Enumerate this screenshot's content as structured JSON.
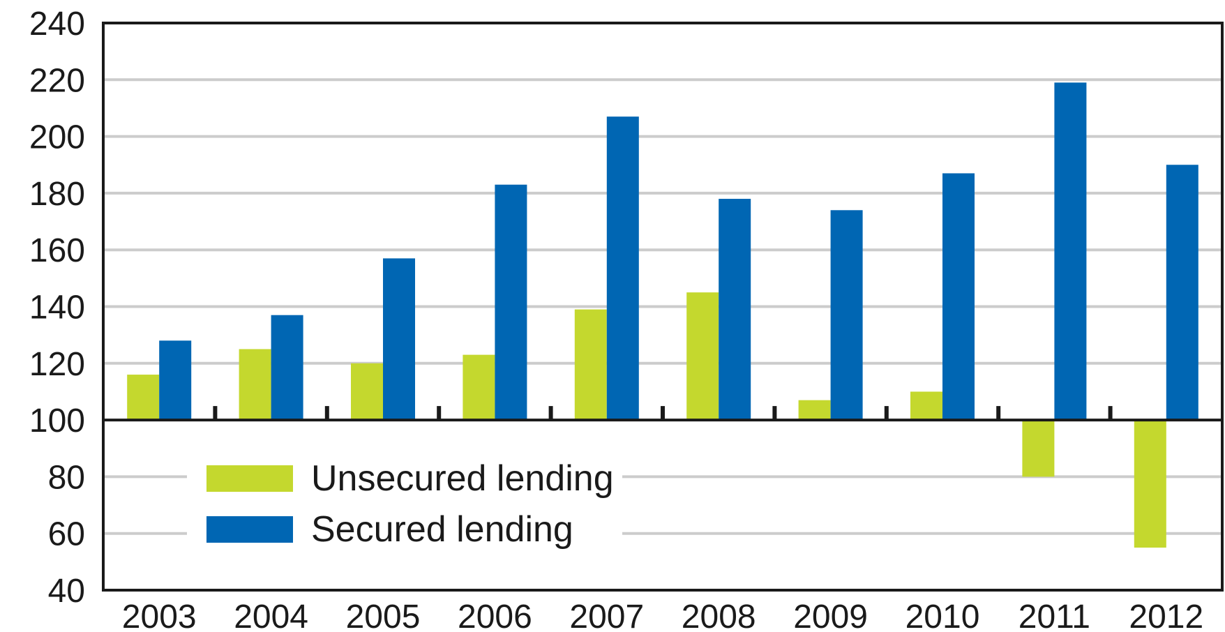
{
  "colors": {
    "unsecured": "#c4d82e",
    "secured": "#0066b3",
    "grid": "#cccccc",
    "axis": "#1a1a1a",
    "background": "#ffffff"
  },
  "legend": {
    "placement": "lower-left",
    "items": [
      {
        "label": "Unsecured lending",
        "color": "#c4d82e"
      },
      {
        "label": "Secured lending",
        "color": "#0066b3"
      }
    ]
  },
  "chart_data": {
    "type": "bar",
    "categories": [
      "2003",
      "2004",
      "2005",
      "2006",
      "2007",
      "2008",
      "2009",
      "2010",
      "2011",
      "2012"
    ],
    "series": [
      {
        "name": "Unsecured lending",
        "values": [
          116,
          125,
          120,
          123,
          139,
          145,
          107,
          110,
          80,
          55
        ]
      },
      {
        "name": "Secured lending",
        "values": [
          128,
          137,
          157,
          183,
          207,
          178,
          174,
          187,
          219,
          190
        ]
      }
    ],
    "baseline": 100,
    "ylim": [
      40,
      240
    ],
    "yticks": [
      40,
      60,
      80,
      100,
      120,
      140,
      160,
      180,
      200,
      220,
      240
    ],
    "grid": true,
    "title": "",
    "xlabel": "",
    "ylabel": ""
  }
}
